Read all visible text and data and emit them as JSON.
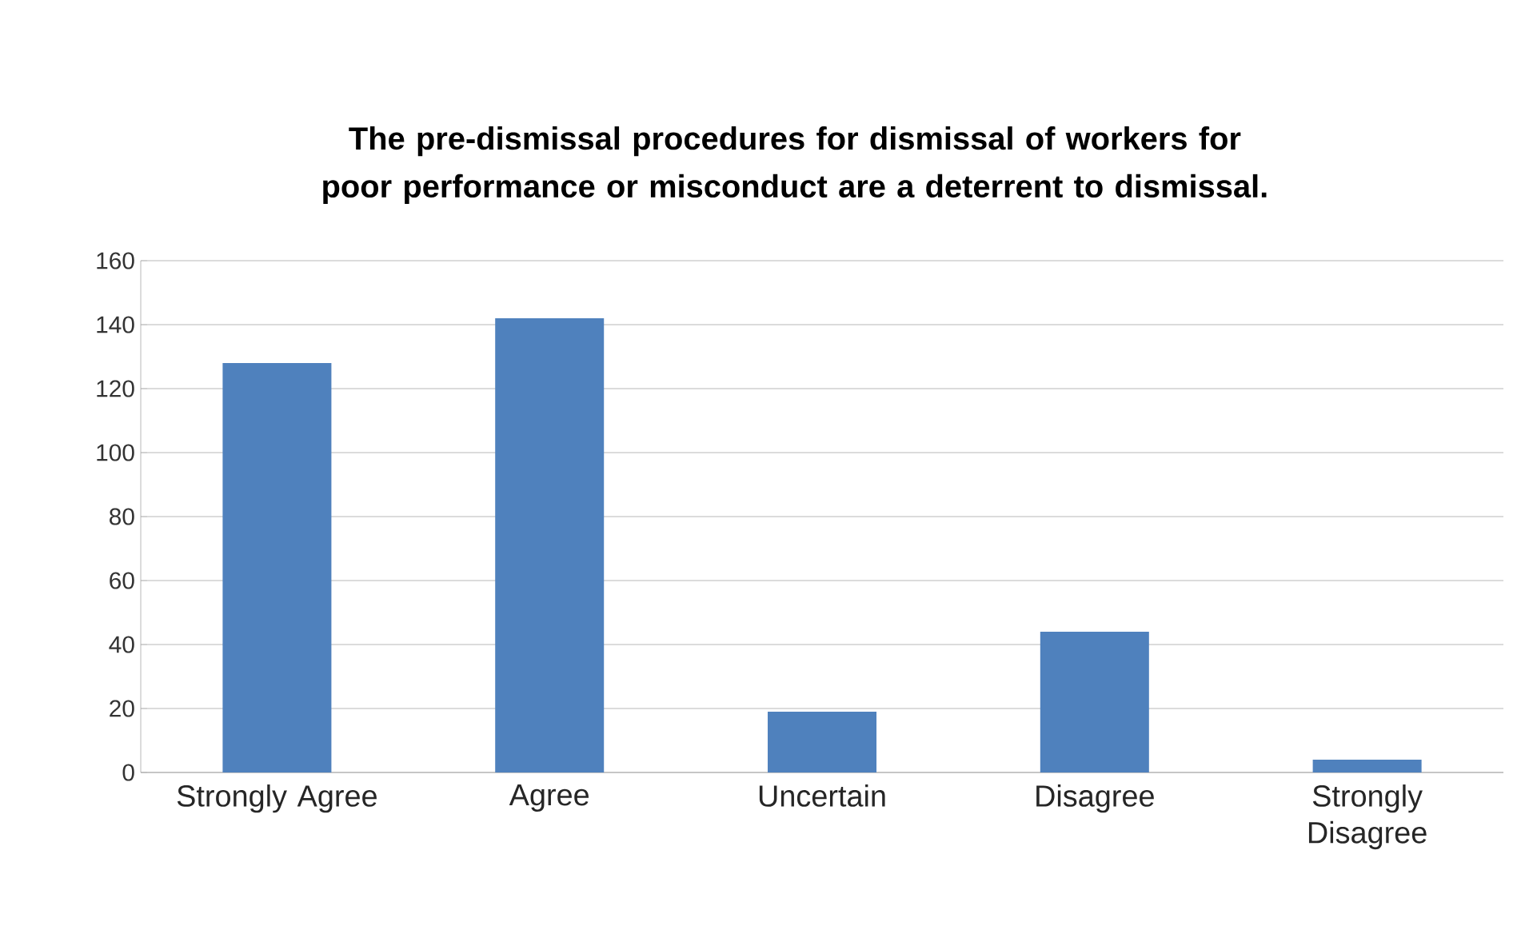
{
  "chart_data": {
    "type": "bar",
    "title": "The pre-dismissal procedures for dismissal of workers for poor performance or misconduct are a deterrent to dismissal.",
    "categories": [
      "Strongly Agree",
      "Agree",
      "Uncertain",
      "Disagree",
      "Strongly Disagree"
    ],
    "values": [
      128,
      142,
      19,
      44,
      4
    ],
    "color": "#4f81bd",
    "ylim": [
      0,
      160
    ],
    "yticks": [
      0,
      20,
      40,
      60,
      80,
      100,
      120,
      140,
      160
    ],
    "grid": "y"
  }
}
